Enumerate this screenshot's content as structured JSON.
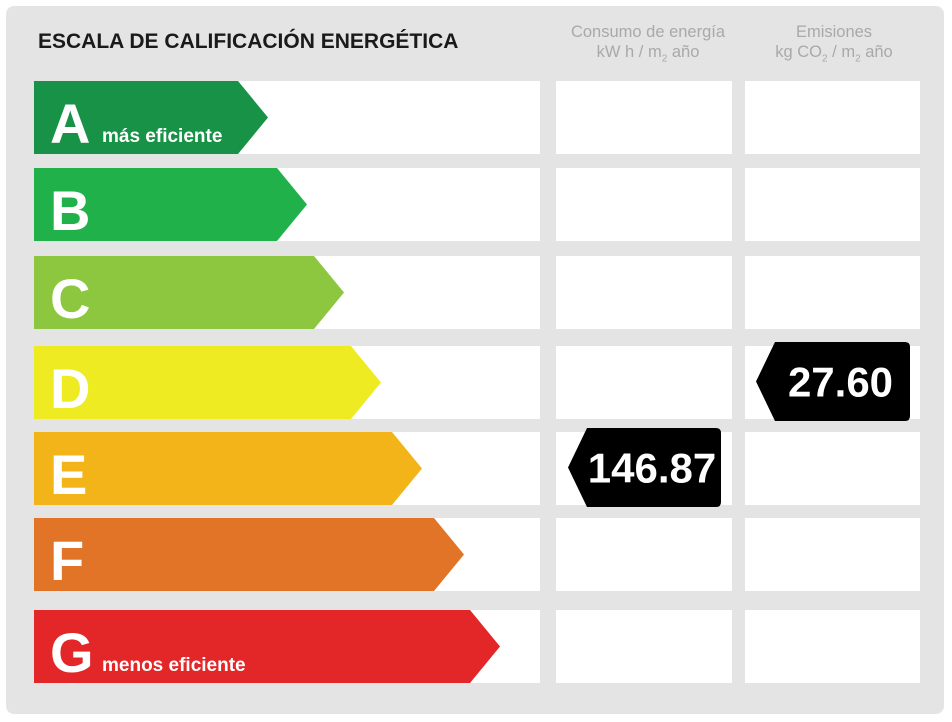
{
  "title": "ESCALA DE CALIFICACIÓN ENERGÉTICA",
  "columns": {
    "consumo": {
      "line1": "Consumo de energía",
      "line2_a": "kW h / m",
      "line2_sub": "2",
      "line2_b": " año"
    },
    "emisiones": {
      "line1": "Emisiones",
      "line2_a": "kg CO",
      "line2_sub1": "2",
      "line2_mid": " / m",
      "line2_sub2": "2",
      "line2_b": " año"
    }
  },
  "chart_data": {
    "type": "table",
    "bands": [
      {
        "letter": "A",
        "caption": "más eficiente",
        "color": "#189247"
      },
      {
        "letter": "B",
        "caption": "",
        "color": "#21b14b"
      },
      {
        "letter": "C",
        "caption": "",
        "color": "#8dc63f"
      },
      {
        "letter": "D",
        "caption": "",
        "color": "#eeeb22"
      },
      {
        "letter": "E",
        "caption": "",
        "color": "#f2b418"
      },
      {
        "letter": "F",
        "caption": "",
        "color": "#e17426"
      },
      {
        "letter": "G",
        "caption": "menos eficiente",
        "color": "#e32628"
      }
    ],
    "consumo": {
      "rating": "E",
      "value": "146.87"
    },
    "emisiones": {
      "rating": "D",
      "value": "27.60"
    }
  }
}
